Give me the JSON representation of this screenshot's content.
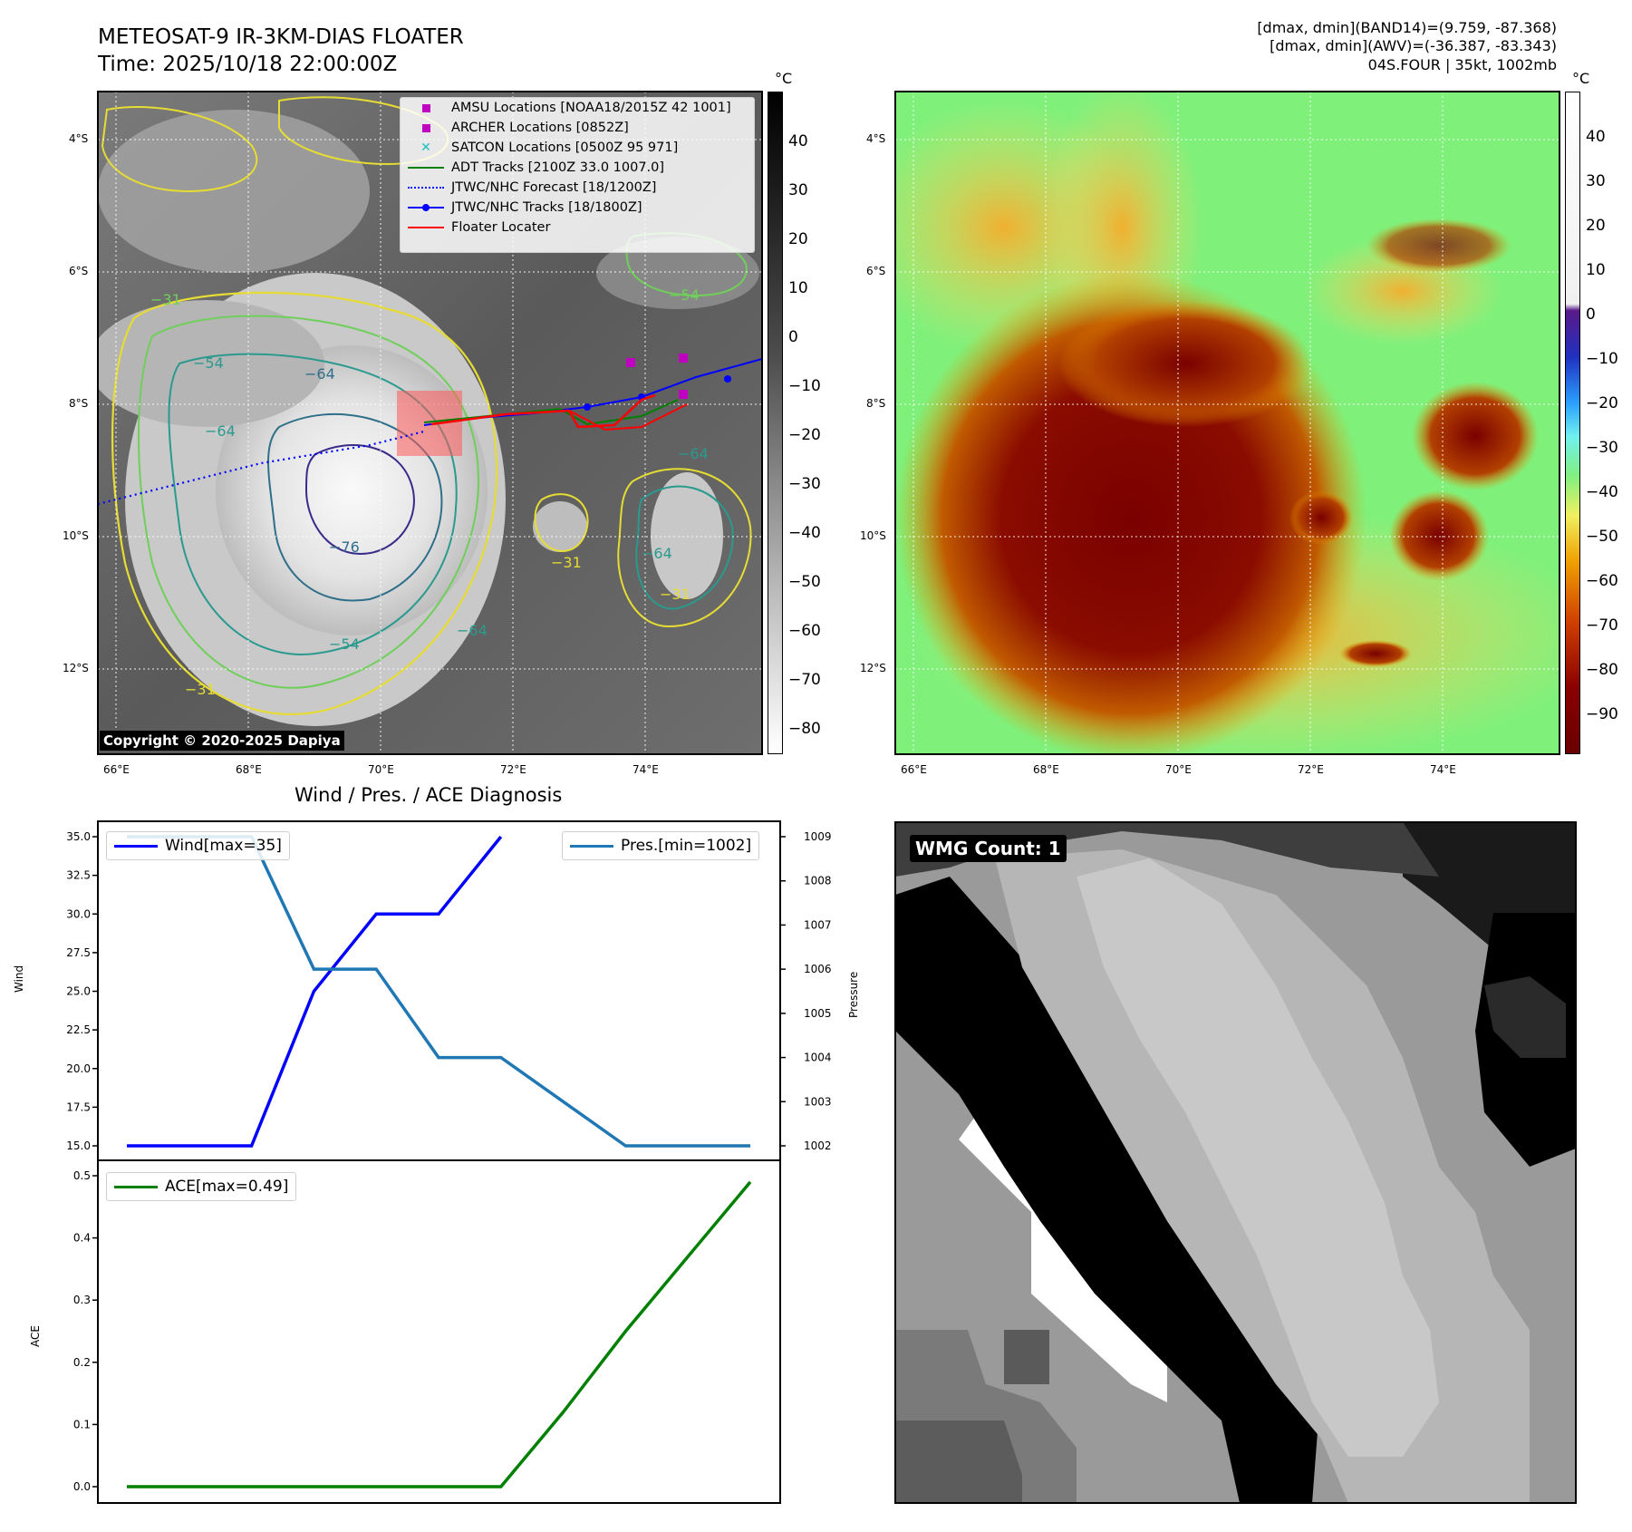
{
  "header": {
    "title_line1": "METEOSAT-9 IR-3KM-DIAS FLOATER",
    "title_line2": "Time: 2025/10/18 22:00:00Z",
    "info_line1": "[dmax, dmin](BAND14)=(9.759, -87.368)",
    "info_line2": "[dmax, dmin](AWV)=(-36.387, -83.343)",
    "info_line3": "04S.FOUR | 35kt, 1002mb"
  },
  "ir_panel": {
    "lat_labels": [
      "4°S",
      "6°S",
      "8°S",
      "10°S",
      "12°S"
    ],
    "lon_labels": [
      "66°E",
      "68°E",
      "70°E",
      "72°E",
      "74°E"
    ],
    "colorbar_unit": "°C",
    "colorbar_ticks": [
      "40",
      "30",
      "20",
      "10",
      "0",
      "−10",
      "−20",
      "−30",
      "−40",
      "−50",
      "−60",
      "−70",
      "−80"
    ],
    "contour_labels": [
      "−31",
      "−54",
      "−64",
      "−76",
      "−64",
      "−54",
      "−31",
      "−64",
      "−64",
      "−31",
      "−54",
      "−64",
      "−31"
    ],
    "copyright": "Copyright © 2020-2025 Dapiya",
    "legend": [
      {
        "label": "AMSU Locations [NOAA18/2015Z 42 1001]",
        "color": "#c000c0",
        "marker": "square"
      },
      {
        "label": "ARCHER Locations [0852Z]",
        "color": "#c000c0",
        "marker": "square"
      },
      {
        "label": "SATCON Locations [0500Z 95 971]",
        "color": "#1fbfbf",
        "marker": "x"
      },
      {
        "label": "ADT Tracks [2100Z 33.0 1007.0]",
        "color": "#008000",
        "marker": "line"
      },
      {
        "label": "JTWC/NHC Forecast [18/1200Z]",
        "color": "#0000ff",
        "marker": "dotted"
      },
      {
        "label": "JTWC/NHC Tracks [18/1800Z]",
        "color": "#0000ff",
        "marker": "line-dot"
      },
      {
        "label": "Floater Locater",
        "color": "#ff0000",
        "marker": "line"
      }
    ]
  },
  "awv_panel": {
    "lat_labels": [
      "4°S",
      "6°S",
      "8°S",
      "10°S",
      "12°S"
    ],
    "lon_labels": [
      "66°E",
      "68°E",
      "70°E",
      "72°E",
      "74°E"
    ],
    "colorbar_unit": "°C",
    "colorbar_ticks": [
      "40",
      "30",
      "20",
      "10",
      "0",
      "−10",
      "−20",
      "−30",
      "−40",
      "−50",
      "−60",
      "−70",
      "−80",
      "−90"
    ]
  },
  "diagnosis": {
    "title": "Wind / Pres. / ACE Diagnosis",
    "wind_ylabel": "Wind",
    "pres_ylabel": "Pressure",
    "ace_ylabel": "ACE",
    "wind_legend": "Wind[max=35]",
    "pres_legend": "Pres.[min=1002]",
    "ace_legend": "ACE[max=0.49]",
    "colors": {
      "wind": "#0000ff",
      "pressure": "#1f77b4",
      "ace": "#008000"
    }
  },
  "wmg_panel": {
    "badge": "WMG Count: 1"
  },
  "chart_data": [
    {
      "type": "line",
      "title": "Wind / Pres. / ACE Diagnosis",
      "series": [
        {
          "name": "Wind[max=35]",
          "axis": "Wind",
          "x": [
            0,
            1,
            2,
            3,
            4,
            5,
            6
          ],
          "values": [
            15,
            15,
            15,
            25,
            30,
            30,
            35
          ]
        },
        {
          "name": "Pres.[min=1002]",
          "axis": "Pressure",
          "x": [
            0,
            1,
            2,
            3,
            4,
            5,
            6,
            7,
            8,
            9,
            10
          ],
          "values": [
            1009,
            1009,
            1009,
            1006,
            1006,
            1004,
            1004,
            1003,
            1002,
            1002,
            1002
          ]
        }
      ],
      "wind_ylim": [
        15,
        35
      ],
      "wind_yticks": [
        "15.0",
        "17.5",
        "20.0",
        "22.5",
        "25.0",
        "27.5",
        "30.0",
        "32.5",
        "35.0"
      ],
      "pres_ylim": [
        1002,
        1009
      ],
      "pres_yticks": [
        "1002",
        "1003",
        "1004",
        "1005",
        "1006",
        "1007",
        "1008",
        "1009"
      ],
      "legend_placement": "top"
    },
    {
      "type": "line",
      "series": [
        {
          "name": "ACE[max=0.49]",
          "x": [
            0,
            1,
            2,
            3,
            4,
            5,
            6,
            7,
            8,
            9,
            10
          ],
          "values": [
            0,
            0,
            0,
            0,
            0,
            0,
            0.0,
            0.12,
            0.25,
            0.37,
            0.49
          ]
        }
      ],
      "ylim": [
        0,
        0.5
      ],
      "yticks": [
        "0.0",
        "0.1",
        "0.2",
        "0.3",
        "0.4",
        "0.5"
      ],
      "legend_placement": "top-left"
    }
  ]
}
